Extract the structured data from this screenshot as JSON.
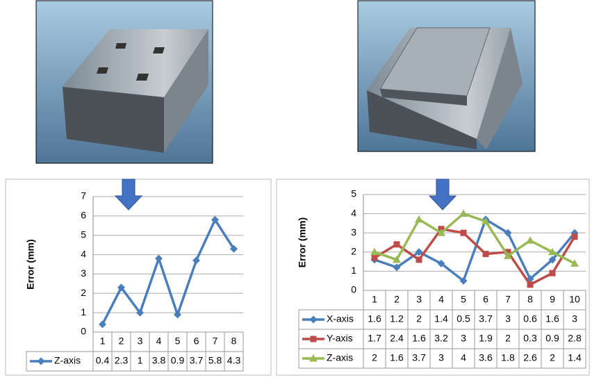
{
  "chart_data": [
    {
      "type": "line",
      "y_label": "Error (mm)",
      "categories": [
        1,
        2,
        3,
        4,
        5,
        6,
        7,
        8
      ],
      "ylim": [
        0,
        7
      ],
      "yticks": [
        0,
        1,
        2,
        3,
        4,
        5,
        6,
        7
      ],
      "grid": true,
      "series": [
        {
          "name": "Z-axis",
          "color": "#4a7ebb",
          "marker": "diamond",
          "values": [
            0.4,
            2.3,
            1,
            3.8,
            0.9,
            3.7,
            5.8,
            4.3
          ]
        }
      ]
    },
    {
      "type": "line",
      "y_label": "Error (mm)",
      "categories": [
        1,
        2,
        3,
        4,
        5,
        6,
        7,
        8,
        9,
        10
      ],
      "ylim": [
        0,
        5
      ],
      "yticks": [
        0,
        1,
        2,
        3,
        4,
        5
      ],
      "grid": true,
      "series": [
        {
          "name": "X-axis",
          "color": "#4a7ebb",
          "marker": "diamond",
          "values": [
            1.6,
            1.2,
            2,
            1.4,
            0.5,
            3.7,
            3,
            0.6,
            1.6,
            3
          ]
        },
        {
          "name": "Y-axis",
          "color": "#be4b48",
          "marker": "square",
          "values": [
            1.7,
            2.4,
            1.6,
            3.2,
            3,
            1.9,
            2,
            0.3,
            0.9,
            2.8
          ]
        },
        {
          "name": "Z-axis",
          "color": "#98b954",
          "marker": "triangle",
          "values": [
            2,
            1.6,
            3.7,
            3,
            4,
            3.6,
            1.8,
            2.6,
            2,
            1.4
          ]
        }
      ]
    }
  ]
}
